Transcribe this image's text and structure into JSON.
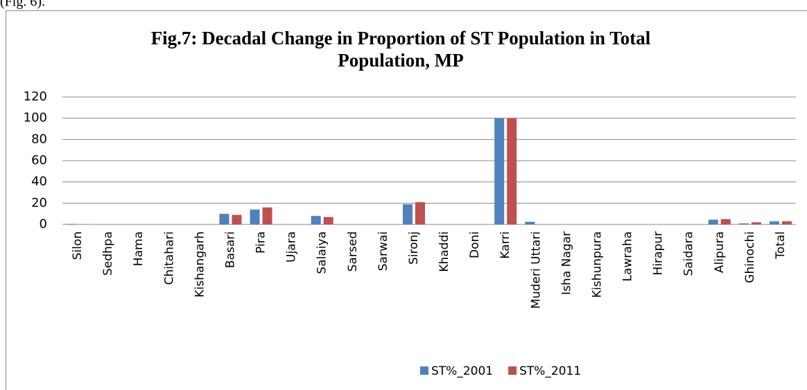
{
  "preceding_text": "(Fig. 6).",
  "chart_data": {
    "type": "bar",
    "title": [
      "Fig.7: Decadal Change in Proportion of ST Population in Total",
      "Population, MP"
    ],
    "categories": [
      "Silon",
      "Sedhpa",
      "Hama",
      "Chitahari",
      "Kishangarh",
      "Basari",
      "Pira",
      "Ujara",
      "Salaiya",
      "Sarsed",
      "Sarwai",
      "Sironj",
      "Khaddi",
      "Doni",
      "Karri",
      "Muderi Uttari",
      "Isha Nagar",
      "Kishunpura",
      "Lawraha",
      "Hirapur",
      "Saidara",
      "Alipura",
      "Ghinochi",
      "Total"
    ],
    "series": [
      {
        "name": "ST%_2001",
        "color": "#4f81bd",
        "values": [
          0.5,
          0,
          0,
          0,
          0,
          10,
          14,
          0,
          8,
          0,
          0,
          19,
          0,
          0,
          100,
          2.5,
          0,
          0,
          0,
          0,
          0,
          4.5,
          1,
          3
        ]
      },
      {
        "name": "ST%_2011",
        "color": "#c0504d",
        "values": [
          0.3,
          0,
          0,
          0,
          0,
          9,
          16,
          0,
          7,
          0,
          0,
          21,
          0,
          0,
          100,
          0,
          0,
          0,
          0,
          0,
          0,
          5,
          2,
          3
        ]
      }
    ],
    "ylim": [
      0,
      120
    ],
    "yticks": [
      0,
      20,
      40,
      60,
      80,
      100,
      120
    ],
    "grid": true,
    "legend": "bottom"
  }
}
